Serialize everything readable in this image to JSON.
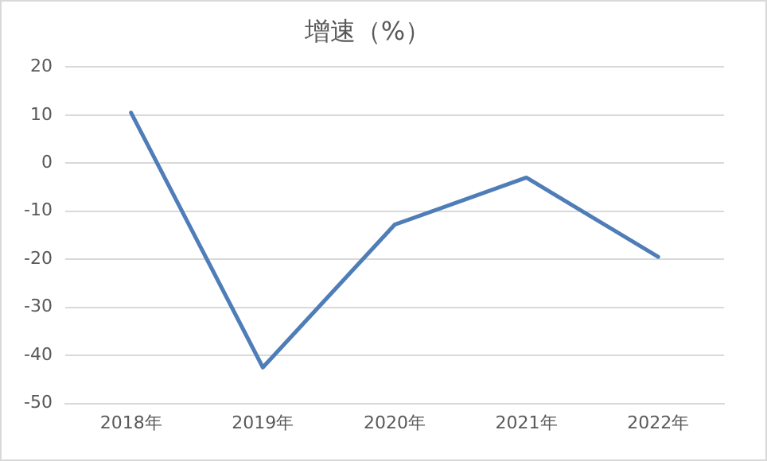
{
  "chart_data": {
    "type": "line",
    "title": "增速（%）",
    "categories": [
      "2018年",
      "2019年",
      "2020年",
      "2021年",
      "2022年"
    ],
    "series": [
      {
        "color": "#4f7db8",
        "values": [
          10.5,
          -42.5,
          -12.8,
          -3,
          -19.5
        ]
      }
    ],
    "ylim": [
      -50,
      20
    ],
    "yticks": [
      -50,
      -40,
      -30,
      -20,
      -10,
      0,
      10,
      20
    ],
    "grid": "y",
    "legend": false,
    "marker": "none",
    "line_style": "solid"
  }
}
